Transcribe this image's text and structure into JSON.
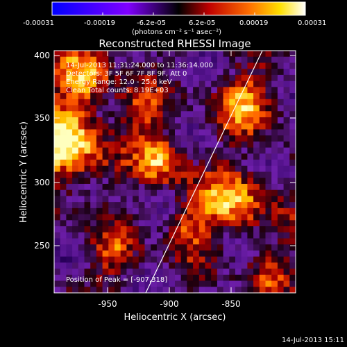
{
  "colorbar": {
    "ticks": [
      "-0.00031",
      "-0.00019",
      "-6.2e-05",
      "6.2e-05",
      "0.00019",
      "0.00031"
    ],
    "units_label": "(photons cm⁻² s⁻¹ asec⁻²)"
  },
  "plot": {
    "title": "Reconstructed RHESSI Image",
    "xlabel": "Heliocentric X (arcsec)",
    "ylabel": "Heliocentric Y (arcsec)",
    "xticks": [
      "-950",
      "-900",
      "-850"
    ],
    "yticks": [
      "400",
      "350",
      "300",
      "250"
    ]
  },
  "info": {
    "time_range": "14-Jul-2013 11:31:24.000 to 11:36:14.000",
    "detectors": "Detectors: 3F 5F 6F 7F 8F 9F, Att 0",
    "energy": "Energy Range: 12.0 - 25.0 keV",
    "clean": "Clean  Total counts: 8.19E+03",
    "peak": "Position of Peak = [-907,318]"
  },
  "timestamp": "14-Jul-2013 15:11"
}
